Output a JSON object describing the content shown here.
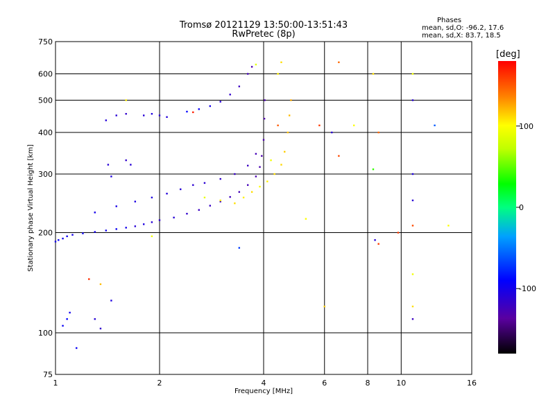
{
  "chart_data": {
    "type": "scatter",
    "title_line1": "Tromsø 20121129 13:50:00-13:51:43",
    "title_line2": "RwPretec (8p)",
    "phases_header": "Phases",
    "phases_o": "mean, sd,O: -96.2, 17.6",
    "phases_x": "mean, sd,X:  83.7, 18.5",
    "xlabel": "Frequency [MHz]",
    "ylabel": "Stationary phase Virtual Height [km]",
    "x_scale": "log",
    "y_scale": "log",
    "xlim": [
      1,
      16
    ],
    "ylim": [
      75,
      750
    ],
    "x_ticks": [
      1,
      2,
      4,
      6,
      8,
      10,
      16
    ],
    "x_tick_labels": [
      "1",
      "2",
      "4",
      "6",
      "8",
      "10",
      "16"
    ],
    "y_ticks": [
      75,
      100,
      200,
      300,
      400,
      500,
      600,
      750
    ],
    "y_tick_labels": [
      "75",
      "100",
      "200",
      "300",
      "400",
      "500",
      "600",
      "750"
    ],
    "grid": true,
    "colorbar": {
      "label": "[deg]",
      "range": [
        -180,
        180
      ],
      "ticks": [
        100,
        0,
        -100
      ],
      "tick_labels": [
        "100",
        "0",
        "-100"
      ]
    },
    "series": [
      {
        "mode": "O",
        "points": [
          [
            1.0,
            188,
            -100
          ],
          [
            1.02,
            190,
            -95
          ],
          [
            1.05,
            192,
            -100
          ],
          [
            1.08,
            195,
            -98
          ],
          [
            1.12,
            197,
            -100
          ],
          [
            1.2,
            199,
            -96
          ],
          [
            1.3,
            201,
            -100
          ],
          [
            1.4,
            203,
            -98
          ],
          [
            1.5,
            205,
            -96
          ],
          [
            1.6,
            207,
            -100
          ],
          [
            1.7,
            209,
            -110
          ],
          [
            1.8,
            212,
            -105
          ],
          [
            1.9,
            215,
            -110
          ],
          [
            2.0,
            218,
            -115
          ],
          [
            2.2,
            222,
            -110
          ],
          [
            2.4,
            228,
            -115
          ],
          [
            2.6,
            234,
            -120
          ],
          [
            2.8,
            241,
            -118
          ],
          [
            3.0,
            248,
            -120
          ],
          [
            3.2,
            256,
            -122
          ],
          [
            3.4,
            265,
            -125
          ],
          [
            3.6,
            278,
            -125
          ],
          [
            3.8,
            295,
            -128
          ],
          [
            3.9,
            315,
            -128
          ],
          [
            3.95,
            340,
            -130
          ],
          [
            4.0,
            380,
            -130
          ],
          [
            4.02,
            440,
            -132
          ],
          [
            4.03,
            500,
            -130
          ],
          [
            1.3,
            230,
            -100
          ],
          [
            1.5,
            240,
            -102
          ],
          [
            1.7,
            248,
            -104
          ],
          [
            1.9,
            255,
            -106
          ],
          [
            2.1,
            262,
            -108
          ],
          [
            2.3,
            270,
            -110
          ],
          [
            2.5,
            278,
            -112
          ],
          [
            2.7,
            282,
            -112
          ],
          [
            3.0,
            290,
            -115
          ],
          [
            3.3,
            300,
            -118
          ],
          [
            3.6,
            318,
            -120
          ],
          [
            3.8,
            345,
            -125
          ],
          [
            1.8,
            450,
            -110
          ],
          [
            1.9,
            455,
            -105
          ],
          [
            2.0,
            450,
            -112
          ],
          [
            2.1,
            445,
            -108
          ],
          [
            1.6,
            455,
            -115
          ],
          [
            1.5,
            450,
            -110
          ],
          [
            1.4,
            435,
            -108
          ],
          [
            2.4,
            462,
            -90
          ],
          [
            2.6,
            470,
            -95
          ],
          [
            2.8,
            480,
            -100
          ],
          [
            3.0,
            495,
            -110
          ],
          [
            3.2,
            520,
            -115
          ],
          [
            3.4,
            550,
            -120
          ],
          [
            3.6,
            600,
            -125
          ],
          [
            3.7,
            630,
            -130
          ],
          [
            1.05,
            105,
            -95
          ],
          [
            1.08,
            110,
            -90
          ],
          [
            1.1,
            115,
            -100
          ],
          [
            1.42,
            320,
            -110
          ],
          [
            1.45,
            295,
            -105
          ],
          [
            1.6,
            330,
            -115
          ],
          [
            1.65,
            320,
            -110
          ],
          [
            1.45,
            125,
            -105
          ],
          [
            1.3,
            110,
            -110
          ],
          [
            1.35,
            103,
            -115
          ],
          [
            1.15,
            90,
            -95
          ],
          [
            10.8,
            500,
            -110
          ],
          [
            10.8,
            300,
            -105
          ],
          [
            10.8,
            250,
            -110
          ],
          [
            10.8,
            110,
            -120
          ],
          [
            8.4,
            190,
            -110
          ],
          [
            6.3,
            400,
            -110
          ]
        ]
      },
      {
        "mode": "X",
        "points": [
          [
            3.3,
            245,
            110
          ],
          [
            3.5,
            255,
            105
          ],
          [
            3.7,
            265,
            110
          ],
          [
            3.9,
            275,
            100
          ],
          [
            4.1,
            285,
            105
          ],
          [
            4.3,
            300,
            110
          ],
          [
            4.5,
            320,
            112
          ],
          [
            4.6,
            350,
            115
          ],
          [
            4.7,
            400,
            118
          ],
          [
            4.75,
            450,
            120
          ],
          [
            4.8,
            500,
            125
          ],
          [
            4.4,
            600,
            105
          ],
          [
            4.5,
            650,
            110
          ],
          [
            2.7,
            255,
            90
          ],
          [
            3.0,
            250,
            105
          ],
          [
            4.2,
            330,
            95
          ],
          [
            5.3,
            220,
            100
          ],
          [
            3.8,
            640,
            90
          ]
        ]
      },
      {
        "mode": "scattered",
        "points": [
          [
            6.6,
            650,
            145
          ],
          [
            6.6,
            340,
            155
          ],
          [
            8.6,
            185,
            160
          ],
          [
            8.3,
            310,
            40
          ],
          [
            8.3,
            600,
            110
          ],
          [
            10.8,
            600,
            95
          ],
          [
            10.8,
            210,
            155
          ],
          [
            10.8,
            150,
            95
          ],
          [
            10.8,
            120,
            110
          ],
          [
            5.8,
            420,
            160
          ],
          [
            4.4,
            420,
            150
          ],
          [
            1.25,
            145,
            165
          ],
          [
            1.35,
            140,
            120
          ],
          [
            1.6,
            500,
            105
          ],
          [
            1.9,
            195,
            95
          ],
          [
            3.4,
            180,
            -70
          ],
          [
            7.3,
            420,
            100
          ],
          [
            13.7,
            210,
            100
          ],
          [
            9.8,
            200,
            160
          ],
          [
            12.5,
            420,
            -60
          ],
          [
            6.0,
            120,
            115
          ],
          [
            2.5,
            460,
            170
          ],
          [
            8.6,
            400,
            145
          ]
        ]
      }
    ]
  }
}
